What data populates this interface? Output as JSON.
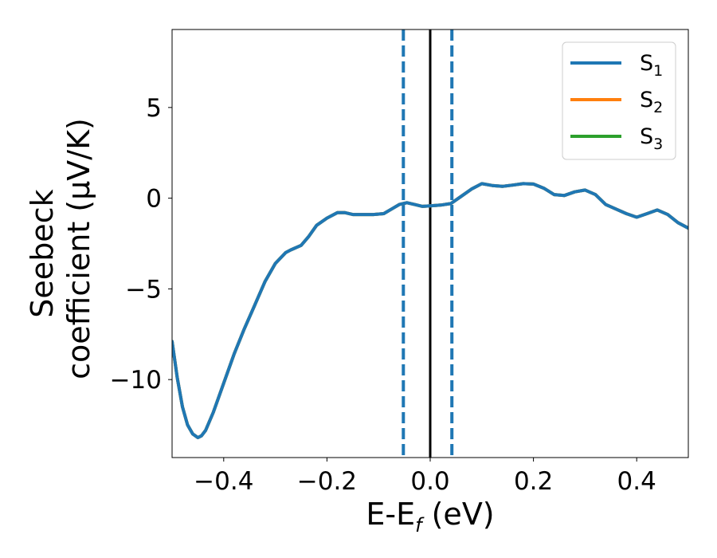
{
  "chart_data": {
    "type": "line",
    "xlabel_main": "E-E",
    "xlabel_sub": "f",
    "xlabel_unit": " (eV)",
    "ylabel_line1": "Seebeck",
    "ylabel_line2": "coefficient  (μV/K)",
    "xlim": [
      -0.5,
      0.5
    ],
    "ylim": [
      -14.3,
      9.3
    ],
    "x_ticks": [
      -0.4,
      -0.2,
      0.0,
      0.2,
      0.4
    ],
    "x_tick_labels": [
      "−0.4",
      "−0.2",
      "0.0",
      "0.2",
      "0.4"
    ],
    "y_ticks": [
      5,
      0,
      -5,
      -10
    ],
    "y_tick_labels": [
      "5",
      "0",
      "−5",
      "−10"
    ],
    "grid": false,
    "legend_placement": "top-right",
    "legend": [
      {
        "base": "S",
        "sub": "1",
        "color": "#1f77b4"
      },
      {
        "base": "S",
        "sub": "2",
        "color": "#ff7f0e"
      },
      {
        "base": "S",
        "sub": "3",
        "color": "#2ca02c"
      }
    ],
    "vertical_lines": [
      {
        "x": -0.052,
        "style": "dashed",
        "color": "#1f77b4"
      },
      {
        "x": 0.0,
        "style": "solid",
        "color": "#000000"
      },
      {
        "x": 0.042,
        "style": "dashed",
        "color": "#1f77b4"
      }
    ],
    "series": [
      {
        "name": "S₃",
        "color": "#2ca02c",
        "x": [
          -0.5,
          -0.49,
          -0.48,
          -0.47,
          -0.46,
          -0.45,
          -0.443,
          -0.435,
          -0.42,
          -0.4,
          -0.38,
          -0.36,
          -0.34,
          -0.32,
          -0.3,
          -0.28,
          -0.27,
          -0.25,
          -0.235,
          -0.22,
          -0.2,
          -0.18,
          -0.165,
          -0.15,
          -0.13,
          -0.11,
          -0.09,
          -0.075,
          -0.06,
          -0.045,
          -0.03,
          -0.015,
          0.0,
          0.02,
          0.04,
          0.06,
          0.08,
          0.1,
          0.12,
          0.14,
          0.16,
          0.18,
          0.2,
          0.22,
          0.24,
          0.26,
          0.28,
          0.3,
          0.32,
          0.34,
          0.36,
          0.38,
          0.4,
          0.42,
          0.44,
          0.46,
          0.48,
          0.5
        ],
        "y": [
          -7.9,
          -9.9,
          -11.5,
          -12.5,
          -13.0,
          -13.2,
          -13.1,
          -12.8,
          -11.8,
          -10.2,
          -8.6,
          -7.2,
          -5.9,
          -4.6,
          -3.6,
          -3.0,
          -2.85,
          -2.6,
          -2.1,
          -1.5,
          -1.1,
          -0.8,
          -0.8,
          -0.9,
          -0.9,
          -0.9,
          -0.85,
          -0.6,
          -0.35,
          -0.25,
          -0.35,
          -0.45,
          -0.42,
          -0.38,
          -0.3,
          0.1,
          0.5,
          0.8,
          0.7,
          0.65,
          0.72,
          0.8,
          0.78,
          0.55,
          0.2,
          0.15,
          0.35,
          0.45,
          0.2,
          -0.35,
          -0.6,
          -0.85,
          -1.05,
          -0.85,
          -0.65,
          -0.9,
          -1.35,
          -1.65
        ]
      },
      {
        "name": "S₂",
        "color": "#ff7f0e",
        "x": [
          -0.5,
          -0.49,
          -0.48,
          -0.47,
          -0.46,
          -0.45,
          -0.443,
          -0.435,
          -0.42,
          -0.4,
          -0.38,
          -0.36,
          -0.34,
          -0.32,
          -0.3,
          -0.28,
          -0.27,
          -0.25,
          -0.235,
          -0.22,
          -0.2,
          -0.18,
          -0.165,
          -0.15,
          -0.13,
          -0.11,
          -0.09,
          -0.075,
          -0.06,
          -0.045,
          -0.03,
          -0.015,
          0.0,
          0.02,
          0.04,
          0.06,
          0.08,
          0.1,
          0.12,
          0.14,
          0.16,
          0.18,
          0.2,
          0.22,
          0.24,
          0.26,
          0.28,
          0.3,
          0.32,
          0.34,
          0.36,
          0.38,
          0.4,
          0.42,
          0.44,
          0.46,
          0.48,
          0.5
        ],
        "y": [
          -7.9,
          -9.9,
          -11.5,
          -12.5,
          -13.0,
          -13.2,
          -13.1,
          -12.8,
          -11.8,
          -10.2,
          -8.6,
          -7.2,
          -5.9,
          -4.6,
          -3.6,
          -3.0,
          -2.85,
          -2.6,
          -2.1,
          -1.5,
          -1.1,
          -0.8,
          -0.8,
          -0.9,
          -0.9,
          -0.9,
          -0.85,
          -0.6,
          -0.35,
          -0.25,
          -0.35,
          -0.45,
          -0.42,
          -0.38,
          -0.3,
          0.1,
          0.5,
          0.8,
          0.7,
          0.65,
          0.72,
          0.8,
          0.78,
          0.55,
          0.2,
          0.15,
          0.35,
          0.45,
          0.2,
          -0.35,
          -0.6,
          -0.85,
          -1.05,
          -0.85,
          -0.65,
          -0.9,
          -1.35,
          -1.65
        ]
      },
      {
        "name": "S₁",
        "color": "#1f77b4",
        "x": [
          -0.5,
          -0.49,
          -0.48,
          -0.47,
          -0.46,
          -0.45,
          -0.443,
          -0.435,
          -0.42,
          -0.4,
          -0.38,
          -0.36,
          -0.34,
          -0.32,
          -0.3,
          -0.28,
          -0.27,
          -0.25,
          -0.235,
          -0.22,
          -0.2,
          -0.18,
          -0.165,
          -0.15,
          -0.13,
          -0.11,
          -0.09,
          -0.075,
          -0.06,
          -0.045,
          -0.03,
          -0.015,
          0.0,
          0.02,
          0.04,
          0.06,
          0.08,
          0.1,
          0.12,
          0.14,
          0.16,
          0.18,
          0.2,
          0.22,
          0.24,
          0.26,
          0.28,
          0.3,
          0.32,
          0.34,
          0.36,
          0.38,
          0.4,
          0.42,
          0.44,
          0.46,
          0.48,
          0.5
        ],
        "y": [
          -7.9,
          -9.9,
          -11.5,
          -12.5,
          -13.0,
          -13.2,
          -13.1,
          -12.8,
          -11.8,
          -10.2,
          -8.6,
          -7.2,
          -5.9,
          -4.6,
          -3.6,
          -3.0,
          -2.85,
          -2.6,
          -2.1,
          -1.5,
          -1.1,
          -0.8,
          -0.8,
          -0.9,
          -0.9,
          -0.9,
          -0.85,
          -0.6,
          -0.35,
          -0.25,
          -0.35,
          -0.45,
          -0.42,
          -0.38,
          -0.3,
          0.1,
          0.5,
          0.8,
          0.7,
          0.65,
          0.72,
          0.8,
          0.78,
          0.55,
          0.2,
          0.15,
          0.35,
          0.45,
          0.2,
          -0.35,
          -0.6,
          -0.85,
          -1.05,
          -0.85,
          -0.65,
          -0.9,
          -1.35,
          -1.65
        ]
      }
    ]
  }
}
